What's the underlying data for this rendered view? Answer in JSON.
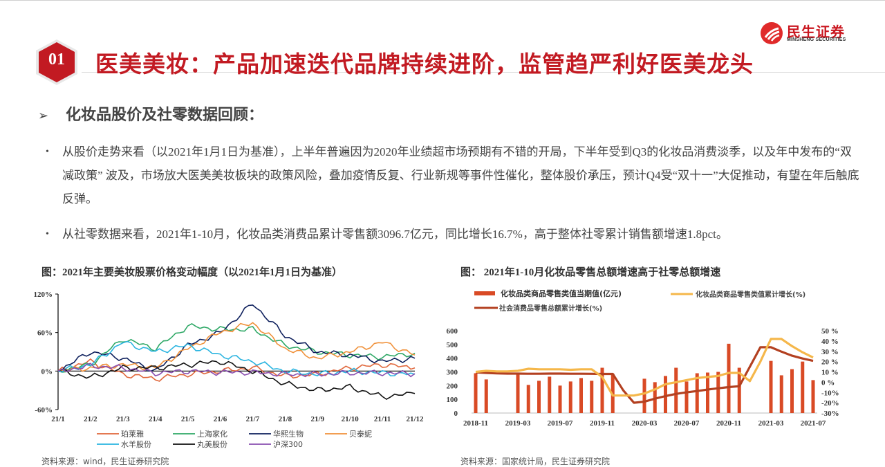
{
  "header": {
    "logo_cn": "民生证券",
    "logo_en": "MINSHENG SECURITIES",
    "section_number": "01",
    "title": "医美美妆：产品加速迭代品牌持续进阶，监管趋严利好医美龙头",
    "brand_color": "#c21a22"
  },
  "section": {
    "arrow_icon": "➢",
    "heading": "化妆品股价及社零数据回顾："
  },
  "paragraphs": [
    {
      "bullet": "•",
      "text": "从股价走势来看（以2021年1月1日为基准），上半年普遍因为2020年业绩超市场预期有不错的开局，下半年受到Q3的化妆品消费淡季，以及年中发布的“双减政策” 波及，市场放大医美美妆板块的政策风险，叠加疫情反复、行业新规等事件性催化，整体股价承压，预计Q4受“双十一”大促推动，有望在年后触底反弹。"
    },
    {
      "bullet": "•",
      "text": "从社零数据来看，2021年1-10月，化妆品类消费品累计零售额3096.7亿元，同比增长16.7%，高于整体社零累计销售额增速1.8pct。"
    }
  ],
  "figures": [
    {
      "title": "图：2021年主要美妆股票价格变动幅度（以2021年1月1日为基准）",
      "source": "资料来源：wind，民生证券研究院"
    },
    {
      "title": "图： 2021年1-10月化妆品零售总额增速高于社零总额增速",
      "source": "资料来源：国家统计局，民生证券研究院"
    }
  ],
  "chart_data": [
    {
      "type": "line",
      "title": "2021年主要美妆股票价格变动幅度（以2021年1月1日为基准）",
      "xlabel": "",
      "ylabel": "",
      "x": [
        "21/1",
        "21/2",
        "21/3",
        "21/4",
        "21/5",
        "21/6",
        "21/7",
        "21/8",
        "21/9",
        "21/10",
        "21/11",
        "21/12"
      ],
      "yticks": [
        "120%",
        "60%",
        "0%",
        "-60%"
      ],
      "ylim": [
        -60,
        120
      ],
      "grid": false,
      "legend_position": "bottom",
      "series": [
        {
          "name": "珀莱雅",
          "color": "#e0663a",
          "values": [
            0,
            15,
            -5,
            -12,
            -5,
            0,
            5,
            -8,
            -5,
            5,
            10,
            5
          ]
        },
        {
          "name": "上海家化",
          "color": "#2ea866",
          "values": [
            0,
            10,
            50,
            35,
            70,
            65,
            65,
            40,
            30,
            25,
            22,
            28
          ]
        },
        {
          "name": "华熙生物",
          "color": "#0d1f5c",
          "values": [
            0,
            30,
            20,
            0,
            40,
            60,
            105,
            55,
            30,
            25,
            15,
            20
          ]
        },
        {
          "name": "贝泰妮",
          "color": "#f0913a",
          "values": [
            0,
            5,
            10,
            5,
            35,
            60,
            75,
            35,
            20,
            30,
            45,
            25
          ]
        },
        {
          "name": "水羊股份",
          "color": "#2ab4e0",
          "values": [
            0,
            10,
            45,
            30,
            40,
            25,
            15,
            0,
            -5,
            0,
            -3,
            -5
          ]
        },
        {
          "name": "丸美股份",
          "color": "#111111",
          "values": [
            0,
            -10,
            5,
            5,
            10,
            15,
            0,
            -20,
            -30,
            -25,
            -40,
            -35
          ]
        },
        {
          "name": "沪深300",
          "color": "#8a4fb0",
          "values": [
            0,
            8,
            5,
            -3,
            0,
            -2,
            -2,
            -5,
            -5,
            -3,
            -3,
            -4
          ]
        }
      ]
    },
    {
      "type": "bar",
      "title": "2021年1-10月化妆品零售总额增速高于社零总额增速",
      "x": [
        "2018-11",
        "2018-12",
        "2019-01",
        "2019-02",
        "2019-03",
        "2019-04",
        "2019-05",
        "2019-06",
        "2019-07",
        "2019-08",
        "2019-09",
        "2019-10",
        "2019-11",
        "2019-12",
        "2020-01",
        "2020-02",
        "2020-03",
        "2020-04",
        "2020-05",
        "2020-06",
        "2020-07",
        "2020-08",
        "2020-09",
        "2020-10",
        "2020-11",
        "2020-12",
        "2021-01",
        "2021-02",
        "2021-03",
        "2021-04",
        "2021-05",
        "2021-06",
        "2021-07"
      ],
      "xticks": [
        "2018-11",
        "2019-03",
        "2019-07",
        "2019-11",
        "2020-03",
        "2020-07",
        "2020-11",
        "2021-03",
        "2021-07"
      ],
      "y_left_ticks": [
        "0",
        "100",
        "200",
        "300",
        "400",
        "500",
        "600"
      ],
      "y_left_lim": [
        0,
        600
      ],
      "y_right_ticks": [
        "-30%",
        "-20%",
        "-10%",
        "0 %",
        "10 %",
        "20 %",
        "30 %",
        "40 %",
        "50 %"
      ],
      "y_right_lim": [
        -30,
        50
      ],
      "legend_position": "top",
      "series": [
        {
          "name": "化妆品类商品零售类值当期值(亿元)",
          "type": "bar",
          "axis": "left",
          "color": "#d94a25",
          "values": [
            290,
            245,
            null,
            null,
            290,
            205,
            235,
            265,
            200,
            230,
            255,
            235,
            330,
            285,
            null,
            null,
            250,
            225,
            270,
            330,
            230,
            290,
            295,
            300,
            505,
            330,
            null,
            null,
            380,
            275,
            320,
            375,
            240
          ]
        },
        {
          "name": "化妆品类商品零售类值累计增长(%)",
          "type": "line",
          "axis": "right",
          "color": "#f5b74a",
          "values": [
            10,
            11,
            10.5,
            10.5,
            11,
            13,
            12.5,
            12.5,
            12.5,
            12,
            12.5,
            12.5,
            5,
            -13,
            -13,
            -13,
            -11,
            -7,
            -2,
            0,
            2,
            4,
            5,
            6,
            9,
            9,
            1,
            20,
            42,
            42,
            35,
            29,
            24
          ]
        },
        {
          "name": "社会消费品零售总额累计增长(%)",
          "type": "line",
          "axis": "right",
          "color": "#b34020",
          "values": [
            9.5,
            9,
            8.5,
            8.3,
            8.3,
            8.2,
            8.2,
            8.3,
            8.3,
            8.2,
            8.2,
            8.1,
            8,
            8,
            -8,
            -20,
            -19,
            -16,
            -13.5,
            -11.4,
            -9.9,
            -8.6,
            -7.2,
            -5.9,
            -4.8,
            -3.9,
            15,
            34,
            33.9,
            29.6,
            25.7,
            23,
            20.7
          ]
        }
      ]
    }
  ]
}
